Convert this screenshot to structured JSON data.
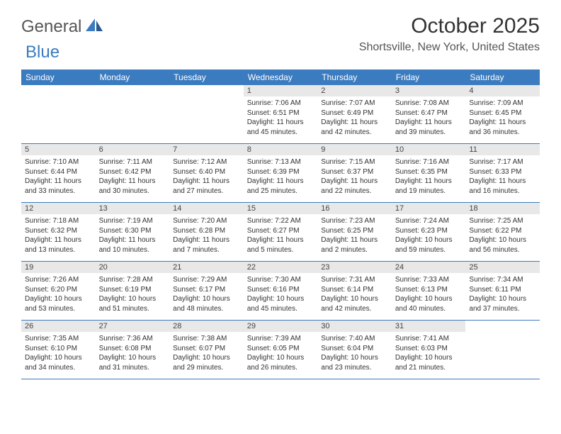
{
  "logo": {
    "part1": "General",
    "part2": "Blue"
  },
  "title": "October 2025",
  "location": "Shortsville, New York, United States",
  "colors": {
    "header_bg": "#3b7bbf",
    "header_text": "#ffffff",
    "daynum_bg": "#e8e8e8",
    "border": "#3b7bbf",
    "logo_gray": "#555555",
    "logo_blue": "#3b7bbf"
  },
  "weekdays": [
    "Sunday",
    "Monday",
    "Tuesday",
    "Wednesday",
    "Thursday",
    "Friday",
    "Saturday"
  ],
  "weeks": [
    [
      null,
      null,
      null,
      {
        "n": "1",
        "sr": "7:06 AM",
        "ss": "6:51 PM",
        "dl": "11 hours and 45 minutes."
      },
      {
        "n": "2",
        "sr": "7:07 AM",
        "ss": "6:49 PM",
        "dl": "11 hours and 42 minutes."
      },
      {
        "n": "3",
        "sr": "7:08 AM",
        "ss": "6:47 PM",
        "dl": "11 hours and 39 minutes."
      },
      {
        "n": "4",
        "sr": "7:09 AM",
        "ss": "6:45 PM",
        "dl": "11 hours and 36 minutes."
      }
    ],
    [
      {
        "n": "5",
        "sr": "7:10 AM",
        "ss": "6:44 PM",
        "dl": "11 hours and 33 minutes."
      },
      {
        "n": "6",
        "sr": "7:11 AM",
        "ss": "6:42 PM",
        "dl": "11 hours and 30 minutes."
      },
      {
        "n": "7",
        "sr": "7:12 AM",
        "ss": "6:40 PM",
        "dl": "11 hours and 27 minutes."
      },
      {
        "n": "8",
        "sr": "7:13 AM",
        "ss": "6:39 PM",
        "dl": "11 hours and 25 minutes."
      },
      {
        "n": "9",
        "sr": "7:15 AM",
        "ss": "6:37 PM",
        "dl": "11 hours and 22 minutes."
      },
      {
        "n": "10",
        "sr": "7:16 AM",
        "ss": "6:35 PM",
        "dl": "11 hours and 19 minutes."
      },
      {
        "n": "11",
        "sr": "7:17 AM",
        "ss": "6:33 PM",
        "dl": "11 hours and 16 minutes."
      }
    ],
    [
      {
        "n": "12",
        "sr": "7:18 AM",
        "ss": "6:32 PM",
        "dl": "11 hours and 13 minutes."
      },
      {
        "n": "13",
        "sr": "7:19 AM",
        "ss": "6:30 PM",
        "dl": "11 hours and 10 minutes."
      },
      {
        "n": "14",
        "sr": "7:20 AM",
        "ss": "6:28 PM",
        "dl": "11 hours and 7 minutes."
      },
      {
        "n": "15",
        "sr": "7:22 AM",
        "ss": "6:27 PM",
        "dl": "11 hours and 5 minutes."
      },
      {
        "n": "16",
        "sr": "7:23 AM",
        "ss": "6:25 PM",
        "dl": "11 hours and 2 minutes."
      },
      {
        "n": "17",
        "sr": "7:24 AM",
        "ss": "6:23 PM",
        "dl": "10 hours and 59 minutes."
      },
      {
        "n": "18",
        "sr": "7:25 AM",
        "ss": "6:22 PM",
        "dl": "10 hours and 56 minutes."
      }
    ],
    [
      {
        "n": "19",
        "sr": "7:26 AM",
        "ss": "6:20 PM",
        "dl": "10 hours and 53 minutes."
      },
      {
        "n": "20",
        "sr": "7:28 AM",
        "ss": "6:19 PM",
        "dl": "10 hours and 51 minutes."
      },
      {
        "n": "21",
        "sr": "7:29 AM",
        "ss": "6:17 PM",
        "dl": "10 hours and 48 minutes."
      },
      {
        "n": "22",
        "sr": "7:30 AM",
        "ss": "6:16 PM",
        "dl": "10 hours and 45 minutes."
      },
      {
        "n": "23",
        "sr": "7:31 AM",
        "ss": "6:14 PM",
        "dl": "10 hours and 42 minutes."
      },
      {
        "n": "24",
        "sr": "7:33 AM",
        "ss": "6:13 PM",
        "dl": "10 hours and 40 minutes."
      },
      {
        "n": "25",
        "sr": "7:34 AM",
        "ss": "6:11 PM",
        "dl": "10 hours and 37 minutes."
      }
    ],
    [
      {
        "n": "26",
        "sr": "7:35 AM",
        "ss": "6:10 PM",
        "dl": "10 hours and 34 minutes."
      },
      {
        "n": "27",
        "sr": "7:36 AM",
        "ss": "6:08 PM",
        "dl": "10 hours and 31 minutes."
      },
      {
        "n": "28",
        "sr": "7:38 AM",
        "ss": "6:07 PM",
        "dl": "10 hours and 29 minutes."
      },
      {
        "n": "29",
        "sr": "7:39 AM",
        "ss": "6:05 PM",
        "dl": "10 hours and 26 minutes."
      },
      {
        "n": "30",
        "sr": "7:40 AM",
        "ss": "6:04 PM",
        "dl": "10 hours and 23 minutes."
      },
      {
        "n": "31",
        "sr": "7:41 AM",
        "ss": "6:03 PM",
        "dl": "10 hours and 21 minutes."
      },
      null
    ]
  ],
  "labels": {
    "sunrise": "Sunrise:",
    "sunset": "Sunset:",
    "daylight": "Daylight:"
  }
}
